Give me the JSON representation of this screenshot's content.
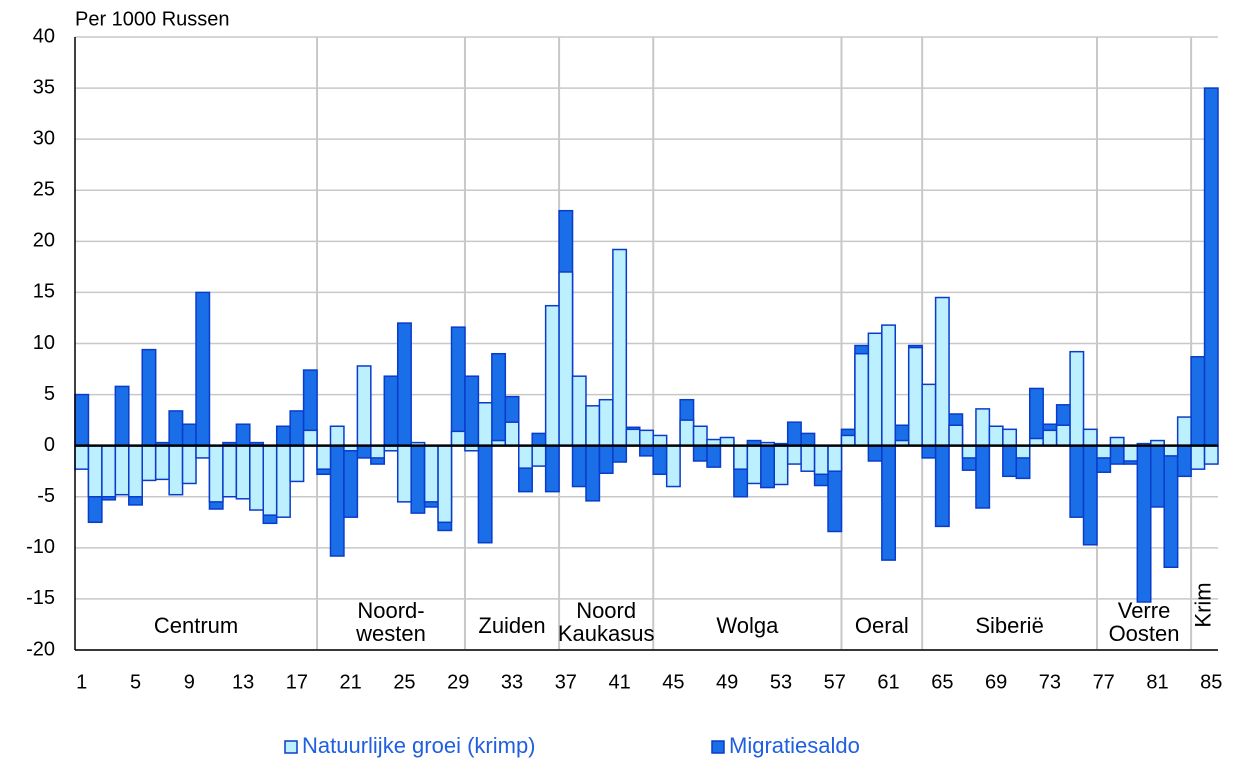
{
  "chart_data": {
    "type": "bar",
    "overlap": true,
    "y_label": "Per 1000 Russen",
    "categories": [
      1,
      null,
      null,
      null,
      5,
      null,
      null,
      null,
      9,
      null,
      null,
      null,
      13,
      null,
      null,
      null,
      17,
      null,
      null,
      null,
      21,
      null,
      null,
      null,
      25,
      null,
      null,
      null,
      29,
      null,
      null,
      null,
      33,
      null,
      null,
      null,
      37,
      null,
      null,
      null,
      41,
      null,
      null,
      null,
      45,
      null,
      null,
      null,
      49,
      null,
      null,
      null,
      53,
      null,
      null,
      null,
      57,
      null,
      null,
      null,
      61,
      null,
      null,
      null,
      65,
      null,
      null,
      null,
      69,
      null,
      null,
      null,
      73,
      null,
      null,
      null,
      77,
      null,
      null,
      null,
      81,
      null,
      null,
      null,
      85
    ],
    "series": [
      {
        "name": "Natuurlijke groei (krimp)",
        "color": "#bdf0ff",
        "values": [
          -2.3,
          -5,
          -5,
          -4.8,
          -5,
          -3.4,
          -3.3,
          -4.8,
          -3.7,
          -1.2,
          -5.5,
          -5,
          -5.2,
          -6.3,
          -6.8,
          -7,
          -3.5,
          1.5,
          -2.3,
          1.9,
          -0.5,
          7.8,
          -1.2,
          -0.5,
          -5.5,
          0.3,
          -5.5,
          -7.5,
          1.4,
          -0.5,
          4.2,
          0.5,
          2.3,
          -2.2,
          -2,
          13.7,
          17,
          6.8,
          3.9,
          4.5,
          19.2,
          1.6,
          1.5,
          1,
          -4,
          2.5,
          1.9,
          0.6,
          0.8,
          -2.3,
          -3.7,
          0.3,
          -3.8,
          -1.8,
          -2.5,
          -2.8,
          -2.5,
          1,
          9,
          11,
          11.8,
          0.5,
          9.6,
          6,
          14.5,
          2,
          -1.2,
          3.6,
          1.9,
          1.6,
          -1.2,
          0.7,
          1.5,
          2,
          9.2,
          1.6,
          -1.2,
          0.8,
          -1.5,
          0.2,
          0.5,
          -1,
          2.8,
          -2.3,
          -1.8
        ]
      },
      {
        "name": "Migratiesaldo",
        "color": "#1a6ee8",
        "values": [
          5,
          -7.5,
          -5.3,
          5.8,
          -5.8,
          9.4,
          0.3,
          3.4,
          2.1,
          15,
          -6.2,
          0.3,
          2.1,
          0.3,
          -7.6,
          1.9,
          3.4,
          7.4,
          -2.8,
          -10.8,
          -7,
          -1.2,
          -1.8,
          6.8,
          12,
          -6.6,
          -6,
          -8.3,
          11.6,
          6.8,
          -9.5,
          9,
          4.8,
          -4.5,
          1.2,
          -4.5,
          23,
          -4,
          -5.4,
          -2.7,
          -1.6,
          1.8,
          -1,
          -2.8,
          0,
          4.5,
          -1.5,
          -2.1,
          0.5,
          -5,
          0.5,
          -4.1,
          0.2,
          2.3,
          1.2,
          -3.9,
          -8.4,
          1.6,
          9.8,
          -1.5,
          -11.2,
          2,
          9.8,
          -1.2,
          -7.9,
          3.1,
          -2.4,
          -6.1,
          1.8,
          -3,
          -3.2,
          5.6,
          2.1,
          4,
          -7,
          -9.7,
          -2.6,
          -1.8,
          -1.8,
          -15.3,
          -6,
          -11.9,
          -3,
          8.7,
          35
        ]
      }
    ],
    "groups": [
      {
        "label": [
          "Centrum"
        ],
        "from": 1,
        "to": 18
      },
      {
        "label": [
          "Noord-",
          "westen"
        ],
        "from": 19,
        "to": 29
      },
      {
        "label": [
          "Zuiden"
        ],
        "from": 30,
        "to": 36
      },
      {
        "label": [
          "Noord",
          "Kaukasus"
        ],
        "from": 37,
        "to": 43
      },
      {
        "label": [
          "Wolga"
        ],
        "from": 44,
        "to": 57
      },
      {
        "label": [
          "Oeral"
        ],
        "from": 58,
        "to": 63
      },
      {
        "label": [
          "Siberië"
        ],
        "from": 64,
        "to": 76
      },
      {
        "label": [
          "Verre",
          "Oosten"
        ],
        "from": 77,
        "to": 83
      },
      {
        "label": [
          "Krim"
        ],
        "from": 84,
        "to": 85
      }
    ],
    "ylim": [
      -20,
      40
    ],
    "yticks": [
      -20,
      -15,
      -10,
      -5,
      0,
      5,
      10,
      15,
      20,
      25,
      30,
      35,
      40
    ],
    "grid": true,
    "legend": "bottom"
  }
}
